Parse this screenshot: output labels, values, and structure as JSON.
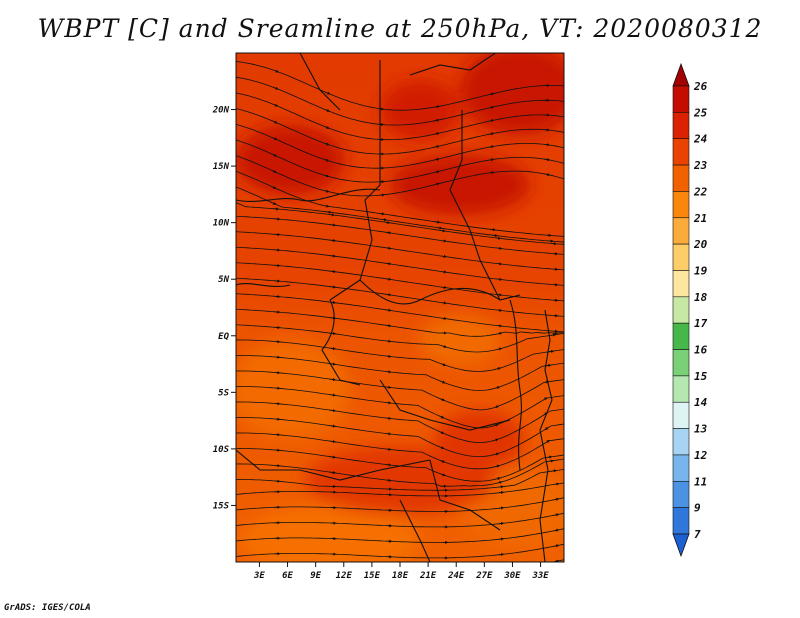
{
  "credit": "GrADS: IGES/COLA",
  "chart_data": {
    "type": "heatmap",
    "title": "WBPT [C] and Sreamline at 250hPa, VT: 2020080312",
    "x_ticks": [
      "3E",
      "6E",
      "9E",
      "12E",
      "15E",
      "18E",
      "21E",
      "24E",
      "27E",
      "30E",
      "33E"
    ],
    "x_tick_values": [
      3,
      6,
      9,
      12,
      15,
      18,
      21,
      24,
      27,
      30,
      33
    ],
    "y_ticks": [
      "20N",
      "15N",
      "10N",
      "5N",
      "EQ",
      "5S",
      "10S",
      "15S"
    ],
    "y_tick_values": [
      20,
      15,
      10,
      5,
      0,
      -5,
      -10,
      -15
    ],
    "xlim": [
      0.5,
      35.5
    ],
    "ylim": [
      -20,
      25
    ],
    "colorbar": {
      "levels": [
        "26",
        "25",
        "24",
        "23",
        "22",
        "21",
        "20",
        "19",
        "18",
        "17",
        "16",
        "15",
        "14",
        "13",
        "12",
        "11",
        "9",
        "7"
      ],
      "colors": [
        "#a50000",
        "#c40c00",
        "#db2100",
        "#ea4200",
        "#f26100",
        "#f8870c",
        "#fbab3a",
        "#fdcd68",
        "#fde7a0",
        "#c6e8a4",
        "#46b849",
        "#79d076",
        "#b4e8b0",
        "#def3f3",
        "#a8d4f4",
        "#78b5ec",
        "#4b93e2",
        "#2f77db",
        "#1a60d2"
      ]
    },
    "field_description_levels": {
      "north_max": "25",
      "south_min": "22"
    }
  }
}
